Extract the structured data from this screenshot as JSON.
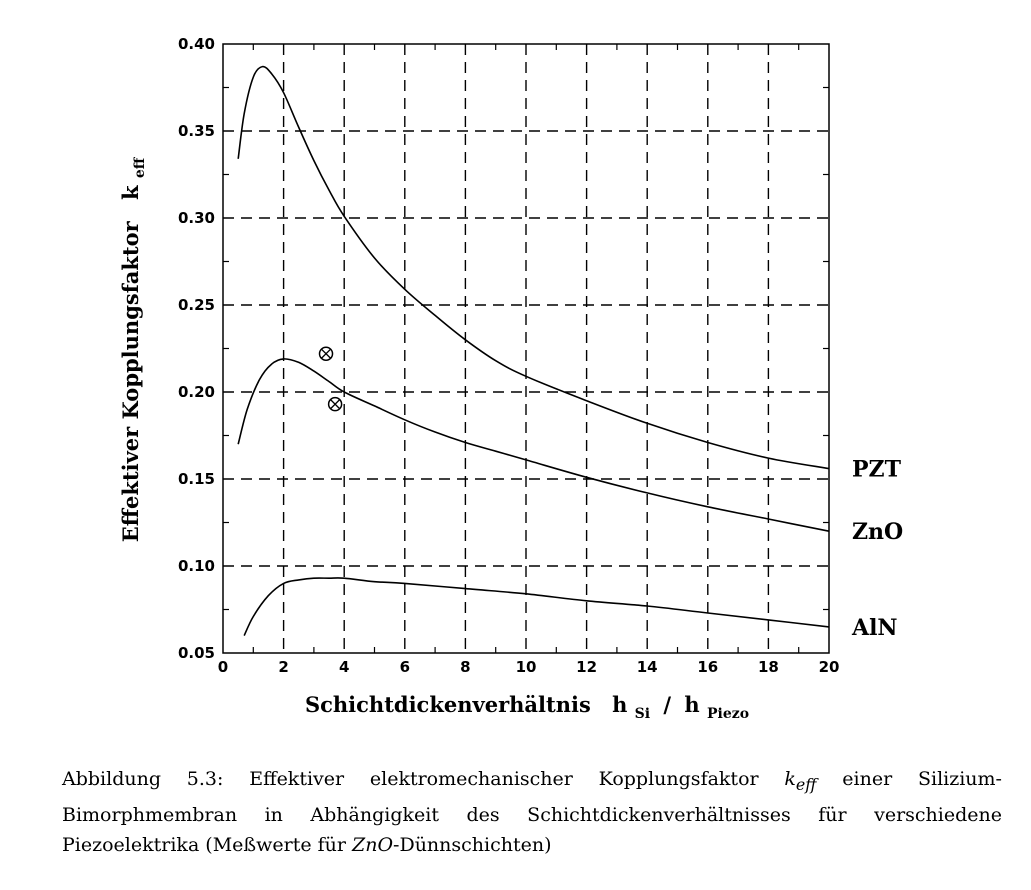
{
  "chart_data": {
    "type": "line",
    "xlabel": "Schichtdickenverhältnis",
    "xlabel_main": "h",
    "xlabel_sub1": "Si",
    "xlabel_sep": "/",
    "xlabel_sub2": "Piezo",
    "ylabel": "Effektiver Kopplungsfaktor",
    "ylabel_main": "k",
    "ylabel_sub": "eff",
    "xlim": [
      0,
      20
    ],
    "ylim": [
      0.05,
      0.4
    ],
    "xticks": [
      "0",
      "2",
      "4",
      "6",
      "8",
      "10",
      "12",
      "14",
      "16",
      "18",
      "20"
    ],
    "yticks": [
      "0.05",
      "0.10",
      "0.15",
      "0.20",
      "0.25",
      "0.30",
      "0.35",
      "0.40"
    ],
    "grid": true,
    "series": [
      {
        "name": "PZT",
        "x": [
          0.5,
          0.7,
          1.0,
          1.3,
          1.6,
          2.0,
          2.5,
          3.0,
          3.5,
          4.0,
          5.0,
          6.0,
          7.0,
          8.0,
          9.0,
          10.0,
          12.0,
          14.0,
          16.0,
          18.0,
          20.0
        ],
        "y": [
          0.334,
          0.36,
          0.381,
          0.387,
          0.383,
          0.372,
          0.352,
          0.333,
          0.316,
          0.301,
          0.277,
          0.259,
          0.244,
          0.23,
          0.218,
          0.209,
          0.195,
          0.182,
          0.171,
          0.162,
          0.156
        ]
      },
      {
        "name": "ZnO",
        "x": [
          0.5,
          0.8,
          1.2,
          1.6,
          2.0,
          2.5,
          3.0,
          3.5,
          4.0,
          5.0,
          6.0,
          7.0,
          8.0,
          9.0,
          10.0,
          12.0,
          14.0,
          16.0,
          18.0,
          20.0
        ],
        "y": [
          0.17,
          0.19,
          0.207,
          0.216,
          0.219,
          0.217,
          0.212,
          0.206,
          0.2,
          0.192,
          0.184,
          0.177,
          0.171,
          0.166,
          0.161,
          0.151,
          0.142,
          0.134,
          0.127,
          0.12
        ]
      },
      {
        "name": "AlN",
        "x": [
          0.7,
          1.0,
          1.5,
          2.0,
          2.5,
          3.0,
          3.5,
          4.0,
          5.0,
          6.0,
          8.0,
          10.0,
          12.0,
          14.0,
          16.0,
          18.0,
          20.0
        ],
        "y": [
          0.06,
          0.071,
          0.083,
          0.09,
          0.092,
          0.093,
          0.093,
          0.093,
          0.091,
          0.09,
          0.087,
          0.084,
          0.08,
          0.077,
          0.073,
          0.069,
          0.065
        ]
      }
    ],
    "measurements": [
      {
        "series": "ZnO",
        "marker": "circle-x",
        "x": 3.4,
        "y": 0.222
      },
      {
        "series": "ZnO",
        "marker": "circle-x",
        "x": 3.7,
        "y": 0.193
      }
    ]
  },
  "caption": {
    "prefix": "Abbildung 5.3: Effektiver elektromechanischer Kopplungsfaktor",
    "symbol": "k",
    "symbol_sub": "eff",
    "middle": "einer Silizium-Bimorphmembran in Abhängigkeit des Schichtdickenverhältnisses für verschiedene Piezoelektrika (Meßwerte für",
    "material": "ZnO",
    "suffix": "-Dünnschichten)"
  }
}
